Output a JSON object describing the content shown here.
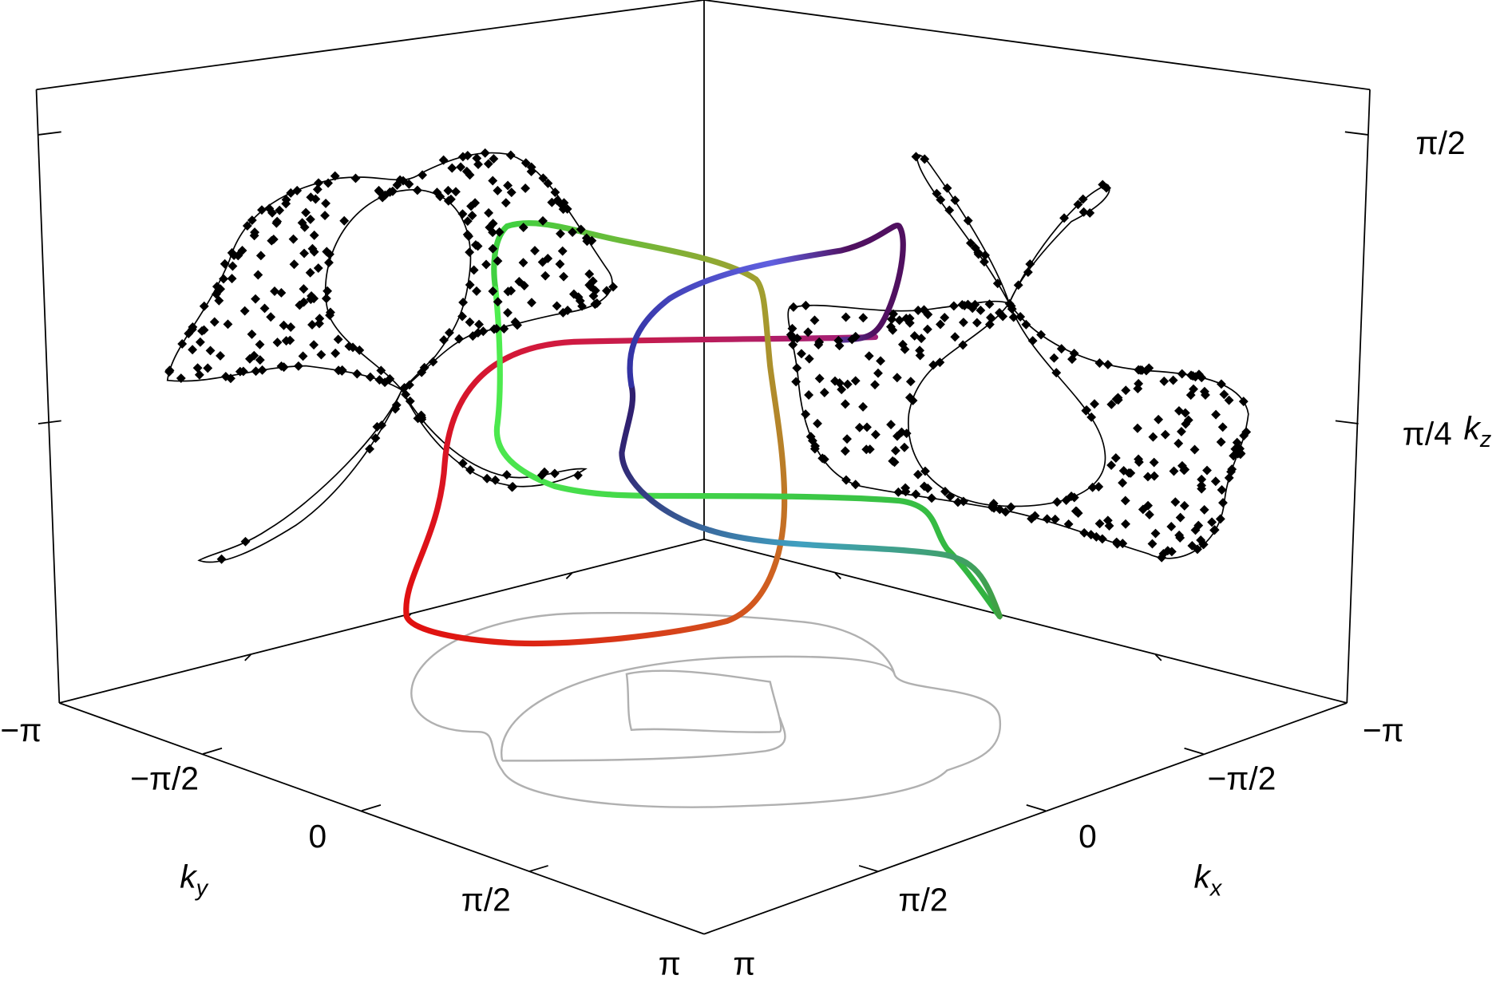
{
  "axes": {
    "ky": {
      "label": "k",
      "subscript": "y",
      "ticks": [
        "−π",
        "−π/2",
        "0",
        "π/2",
        "π"
      ]
    },
    "kx": {
      "label": "k",
      "subscript": "x",
      "ticks": [
        "π",
        "π/2",
        "0",
        "−π/2",
        "−π"
      ]
    },
    "kz": {
      "label": "k",
      "subscript": "z",
      "ticks": [
        "π/4",
        "π/2"
      ]
    }
  }
}
